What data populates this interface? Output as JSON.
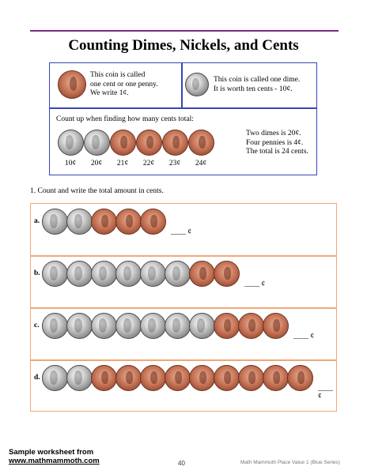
{
  "title": "Counting Dimes, Nickels, and Cents",
  "info": {
    "penny_text": "This coin is called\none cent or one penny.\nWe write 1¢.",
    "dime_text": "This coin is called one dime.\nIt is worth ten cents - 10¢.",
    "count_up_heading": "Count up when finding how many cents total:",
    "count_up_coins": [
      "dime",
      "dime",
      "penny",
      "penny",
      "penny",
      "penny"
    ],
    "count_up_labels": [
      "10¢",
      "20¢",
      "21¢",
      "22¢",
      "23¢",
      "24¢"
    ],
    "summary": "Two dimes is 20¢.\nFour pennies is 4¢.\nThe total is 24 cents."
  },
  "instruction": "1. Count and write the total amount in cents.",
  "exercises": [
    {
      "label": "a.",
      "coins": [
        "dime",
        "dime",
        "penny",
        "penny",
        "penny"
      ],
      "answer_blank": "____ ¢"
    },
    {
      "label": "b.",
      "coins": [
        "dime",
        "dime",
        "dime",
        "dime",
        "dime",
        "dime",
        "penny",
        "penny"
      ],
      "answer_blank": "____ ¢"
    },
    {
      "label": "c.",
      "coins": [
        "dime",
        "dime",
        "dime",
        "dime",
        "dime",
        "dime",
        "dime",
        "penny",
        "penny",
        "penny"
      ],
      "answer_blank": "____ ¢"
    },
    {
      "label": "d.",
      "coins": [
        "dime",
        "dime",
        "penny",
        "penny",
        "penny",
        "penny",
        "penny",
        "penny",
        "penny",
        "penny",
        "penny"
      ],
      "answer_blank": "____ ¢"
    }
  ],
  "footer": {
    "sample": "Sample worksheet from",
    "url": "www.mathmammoth.com",
    "page": "40",
    "series": "Math Mammoth Place Value 1 (Blue Series)"
  },
  "colors": {
    "title_rule": "#7b2a86",
    "info_border": "#3b44b8",
    "exercise_border": "#f0a878"
  }
}
